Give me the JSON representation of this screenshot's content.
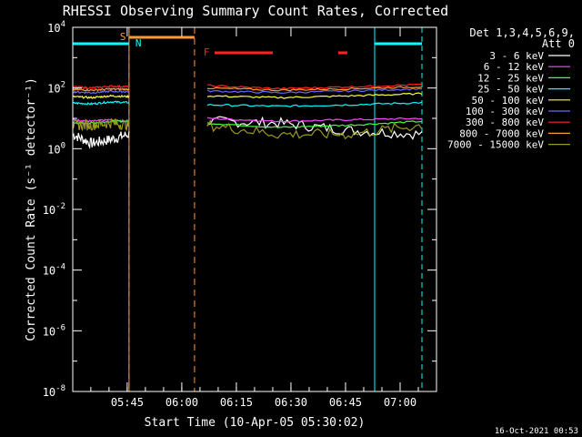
{
  "chart_data": {
    "type": "line",
    "title": "RHESSI Observing Summary Count Rates, Corrected",
    "xlabel": "Start Time (10-Apr-05 05:30:02)",
    "ylabel": "Corrected Count Rate (s⁻¹ detector⁻¹)",
    "y_scale": "log",
    "ylim": [
      1e-08,
      10000.0
    ],
    "xlim": [
      "05:30:02",
      "07:10:00"
    ],
    "x_tick_labels": [
      "05:45",
      "06:00",
      "06:15",
      "06:30",
      "06:45",
      "07:00"
    ],
    "y_tick_labels": [
      "10^-8",
      "10^-6",
      "10^-4",
      "10^-2",
      "10^0",
      "10^2",
      "10^4"
    ],
    "detector_label": [
      "Det 1,3,4,5,6,9,",
      "Att 0"
    ],
    "timestamp": "16-Oct-2021 00:53",
    "flag_labels": {
      "saa": "S",
      "night": "N",
      "flare": "F"
    },
    "legend_position": "right",
    "series": [
      {
        "name": "3 - 6 keV",
        "color": "#ffffff",
        "seg1": [
          3.0,
          1.5,
          2.0,
          3.0
        ],
        "seg2": [
          8,
          7,
          4,
          3
        ]
      },
      {
        "name": "6 - 12 keV",
        "color": "#ff44ff",
        "seg1": [
          9,
          8,
          9,
          8
        ],
        "seg2": [
          10,
          8,
          9,
          10
        ]
      },
      {
        "name": "12 - 25 keV",
        "color": "#44ff44",
        "seg1": [
          7,
          7,
          8,
          8
        ],
        "seg2": [
          7,
          5,
          6,
          8
        ]
      },
      {
        "name": "25 - 50 keV",
        "color": "#00ffff",
        "seg1": [
          32,
          30,
          35,
          33
        ],
        "seg2": [
          28,
          25,
          28,
          33
        ]
      },
      {
        "name": "50 - 100 keV",
        "color": "#ffff44",
        "seg1": [
          52,
          48,
          55,
          52
        ],
        "seg2": [
          55,
          48,
          55,
          65
        ]
      },
      {
        "name": "100 - 300 keV",
        "color": "#6666ff",
        "seg1": [
          75,
          70,
          78,
          75
        ],
        "seg2": [
          80,
          70,
          80,
          95
        ]
      },
      {
        "name": "300 - 800 keV",
        "color": "#ff2222",
        "seg1": [
          110,
          100,
          115,
          110
        ],
        "seg2": [
          120,
          95,
          110,
          130
        ]
      },
      {
        "name": "800 - 7000 keV",
        "color": "#ff9933",
        "seg1": [
          90,
          85,
          92,
          90
        ],
        "seg2": [
          100,
          85,
          95,
          110
        ]
      },
      {
        "name": "7000 - 15000 keV",
        "color": "#999922",
        "seg1": [
          6,
          6,
          7,
          6
        ],
        "seg2": [
          6,
          3,
          3,
          6
        ]
      }
    ],
    "saa_period": [
      "05:45:30",
      "06:03:30"
    ],
    "night_periods": [
      [
        "05:30:02",
        "05:45:30"
      ],
      [
        "06:53:00",
        "07:06:00"
      ]
    ],
    "flare_periods": [
      [
        "06:09:00",
        "06:25:00"
      ],
      [
        "06:43:00",
        "06:45:30"
      ]
    ]
  }
}
